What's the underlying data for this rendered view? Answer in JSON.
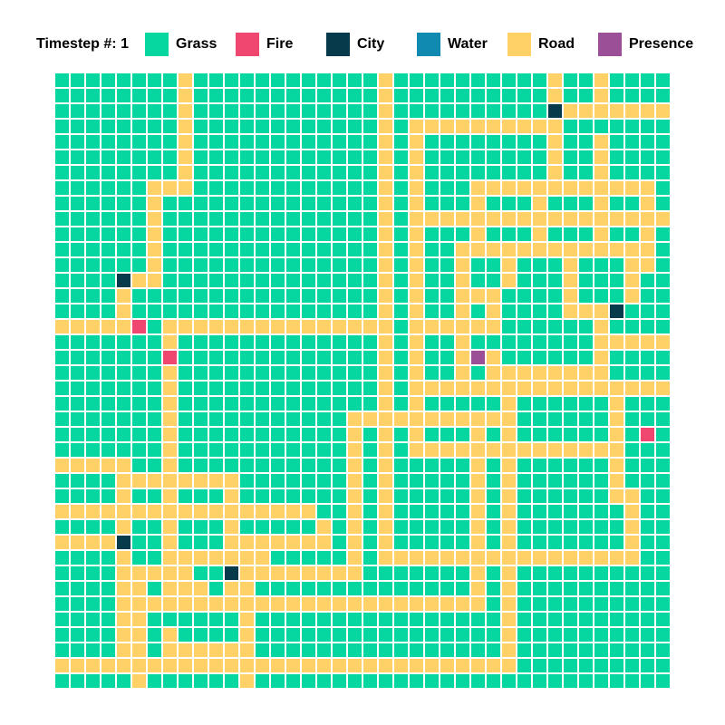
{
  "legend": {
    "timestep_label": "Timestep #:",
    "timestep_value": "1",
    "items": [
      {
        "key": "grass",
        "label": "Grass",
        "color": "#06D6A0"
      },
      {
        "key": "fire",
        "label": "Fire",
        "color": "#EF476F"
      },
      {
        "key": "city",
        "label": "City",
        "color": "#073B4C"
      },
      {
        "key": "water",
        "label": "Water",
        "color": "#118AB2"
      },
      {
        "key": "road",
        "label": "Road",
        "color": "#FFD166"
      },
      {
        "key": "presence",
        "label": "Presence",
        "color": "#9B4F96"
      }
    ]
  },
  "grid": {
    "rows": 40,
    "cols": 40,
    "cell_gap_color": "#ffffff",
    "legend_codes": "G=grass, F=fire, C=city, W=water, R=road, P=presence",
    "cells": [
      "GGGGGGGGRGGGGGGGGGGGGRGGGGGGGGGGRGGRGGGG",
      "GGGGGGGGRGGGGGGGGGGGGRGGGGGGGGGGRGGRGGGG",
      "GGGGGGGGRGGGGGGGGGGGGRGGGGGGGGGGCRRRRRRR",
      "GGGGGGGGRGGGGGGGGGGGGRGRRRRRRRRRRGGGGGGG",
      "GGGGGGGGRGGGGGGGGGGGGRGRGGGGGGGGRGGRGGGG",
      "GGGGGGGGRGGGGGGGGGGGGRGRGGGGGGGGRGGRGGGG",
      "GGGGGGGGRGGGGGGGGGGGGRGRGGGGGGGGRGGRGGGG",
      "GGGGGGRRRGGGGGGGGGGGGRGRGGGRRRRRRRRRRRRG",
      "GGGGGGRGGGGGGGGGGGGGGRGRGGGRGGGRGGGRGGRG",
      "GGGGGGRGGGGGGGGGGGGGGRGRRRRRRRRRRRRRRRRR",
      "GGGGGGRGGGGGGGGGGGGGGRGRGGGRGGGRGGGRGGRG",
      "GGGGGGRGGGGGGGGGGGGGGRGRGGRRRRRRRRRRRRRG",
      "GGGGGGRGGGGGGGGGGGGGGRGRGGRGGRGGGRGGGRRG",
      "GGGGCRRGGGGGGGGGGGGGGRGRGGRGGRGGGRGGGRGG",
      "GGGGRGGGGGGGGGGGGGGGGRGRGGRRRGGGGRGGGRGG",
      "GGGGRGGGGGGGGGGGGGGGGRGRGGRGRGGGGRRRCGGG",
      "RRRRRFGRRRRRRRRRRRRRRRGRRRRRRGGGGGGRGGGG",
      "GGGGGGGRGGGGGGGGGGGGGRGRGGRGGGGGGGGRRRRR",
      "GGGGGGGFGGGGGGGGGGGGGRGRGGRPRGGGGGGRGGGG",
      "GGGGGGGRGGGGGGGGGGGGGRGRGGRGRRRRRRRRGGGG",
      "GGGGGGGRGGGGGGGGGGGGGRGRRRRRRRRRRRRRRRRR",
      "GGGGGGGRGGGGGGGGGGGGGRGRGGGGGRGGGGGGRGGG",
      "GGGGGGGRGGGGGGGGGGGRRRRRRRRRRRGGGGGGRGGG",
      "GGGGGGGRGGGGGGGGGGGRGRGRGGGRGRGGGGGGRGFG",
      "GGGGGGGRGGGGGGGGGGGRGRGRRRRRRRRRRRRRRGGG",
      "RRRRRGGRGGGGGGGGGGGRGRGGGGGRGRGGGGGGRGGG",
      "GGGGRRRRRRRRGGGGGGGRGRGGGGGRGRGGGGGGRGGG",
      "GGGGRGGRGGGRGGGGGGGRGRGGGGGRGRGGGGGGRRGG",
      "RRRRRRRRRRRRRRRRRGGRGRGGGGGRGRGGGGGGGRGG",
      "GGGGRGGRGGGRGGGGGRGRGRGGGGGRGRGGGGGGGRGG",
      "RRRRCGGRGGGRRRRRRRGRGRGGGGGRGRGGGGGGGRGG",
      "GGGGRGGRRRRRRRGGGGGRGRRRRRRRRRRRRRRRRRGG",
      "GGGGRRRRRGGCRRRRRRRRGGGGGGGRGRGGGGGGGGGG",
      "GGGGRRGRRRGRRGGGGGGGGGGGGGGRGRGGGGGGGGGG",
      "GGGGRRRRRRRRRRRRRRRRRRRRRRRRGRGGGGGGGGGG",
      "GGGGRRGGGGGGRGGGGGGGGGGGGGGGGRGGGGGGGGGG",
      "GGGGRRGRGGGGRGGGGGGGGGGGGGGGGRGGGGGGGGGG",
      "GGGGRRGRRRRRRGGGGGGGGGGGGGGGGRGGGGGGGGGG",
      "RRRRRRRRRRRRRRRRRRRRRRRRRRRRRRGGGGGGGGGG",
      "GGGGGRGGGGGGRGGGGGGGGGGGGGGGGGGGGGGGGGGG"
    ]
  }
}
